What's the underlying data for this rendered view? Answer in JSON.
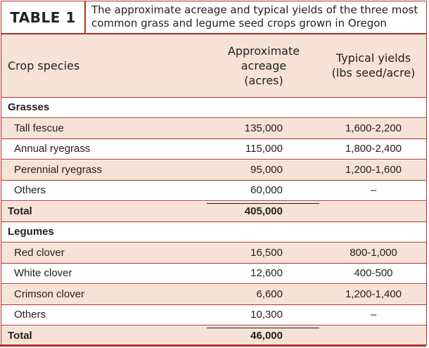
{
  "table": {
    "badge": "TABLE 1",
    "caption_line1": "The approximate acreage and typical yields of the three most",
    "caption_line2": "common grass and legume seed crops grown in Oregon",
    "columns": {
      "species": "Crop species",
      "acreage_l1": "Approximate",
      "acreage_l2": "acreage",
      "acreage_l3": "(acres)",
      "yields_l1": "Typical yields",
      "yields_l2": "(lbs seed/acre)"
    },
    "rows": [
      {
        "type": "section",
        "name": "Grasses",
        "acreage": "",
        "yield": ""
      },
      {
        "type": "data",
        "name": "Tall fescue",
        "acreage": "135,000",
        "yield": "1,600-2,200"
      },
      {
        "type": "data",
        "name": "Annual ryegrass",
        "acreage": "115,000",
        "yield": "1,800-2,400"
      },
      {
        "type": "data",
        "name": "Perennial ryegrass",
        "acreage": "95,000",
        "yield": "1,200-1,600"
      },
      {
        "type": "data",
        "name": "Others",
        "acreage": "60,000",
        "yield": "–"
      },
      {
        "type": "total",
        "name": "Total",
        "acreage": "405,000",
        "yield": ""
      },
      {
        "type": "section",
        "name": "Legumes",
        "acreage": "",
        "yield": ""
      },
      {
        "type": "data",
        "name": "Red clover",
        "acreage": "16,500",
        "yield": "800-1,000"
      },
      {
        "type": "data",
        "name": "White clover",
        "acreage": "12,600",
        "yield": "400-500"
      },
      {
        "type": "data",
        "name": "Crimson clover",
        "acreage": "6,600",
        "yield": "1,200-1,400"
      },
      {
        "type": "data",
        "name": "Others",
        "acreage": "10,300",
        "yield": "–"
      },
      {
        "type": "total",
        "name": "Total",
        "acreage": "46,000",
        "yield": ""
      }
    ]
  },
  "colors": {
    "accent": "#b0302b",
    "shade": "#f6e2d6"
  }
}
